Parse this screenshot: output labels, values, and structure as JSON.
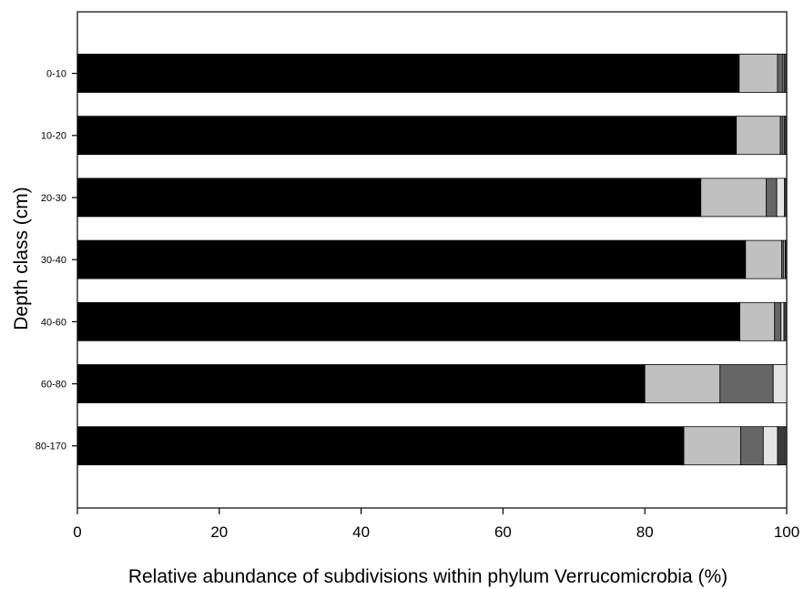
{
  "chart_data": {
    "type": "bar",
    "orientation": "horizontal",
    "stacked": true,
    "xlabel": "Relative abundance of subdivisions within phylum Verrucomicrobia (%)",
    "ylabel": "Depth class (cm)",
    "xlim": [
      0,
      100
    ],
    "xticks": [
      "0",
      "20",
      "40",
      "60",
      "80",
      "100"
    ],
    "grid": false,
    "categories": [
      "0-10",
      "10-20",
      "20-30",
      "30-40",
      "40-60",
      "60-80",
      "80-170"
    ],
    "series": [
      {
        "color": "#000000",
        "values": [
          93.3,
          92.9,
          87.9,
          94.2,
          93.4,
          80.0,
          85.5
        ]
      },
      {
        "color": "#c0c0c0",
        "values": [
          5.4,
          6.2,
          9.2,
          5.1,
          4.9,
          10.6,
          8.0
        ]
      },
      {
        "color": "#666666",
        "values": [
          0.7,
          0.4,
          1.5,
          0.3,
          0.9,
          7.5,
          3.2
        ]
      },
      {
        "color": "#e4e4e4",
        "values": [
          0.2,
          0.2,
          1.1,
          0.2,
          0.4,
          1.9,
          2.0
        ]
      },
      {
        "color": "#3a3a3a",
        "values": [
          0.4,
          0.3,
          0.3,
          0.2,
          0.4,
          0.0,
          1.3
        ]
      }
    ]
  }
}
